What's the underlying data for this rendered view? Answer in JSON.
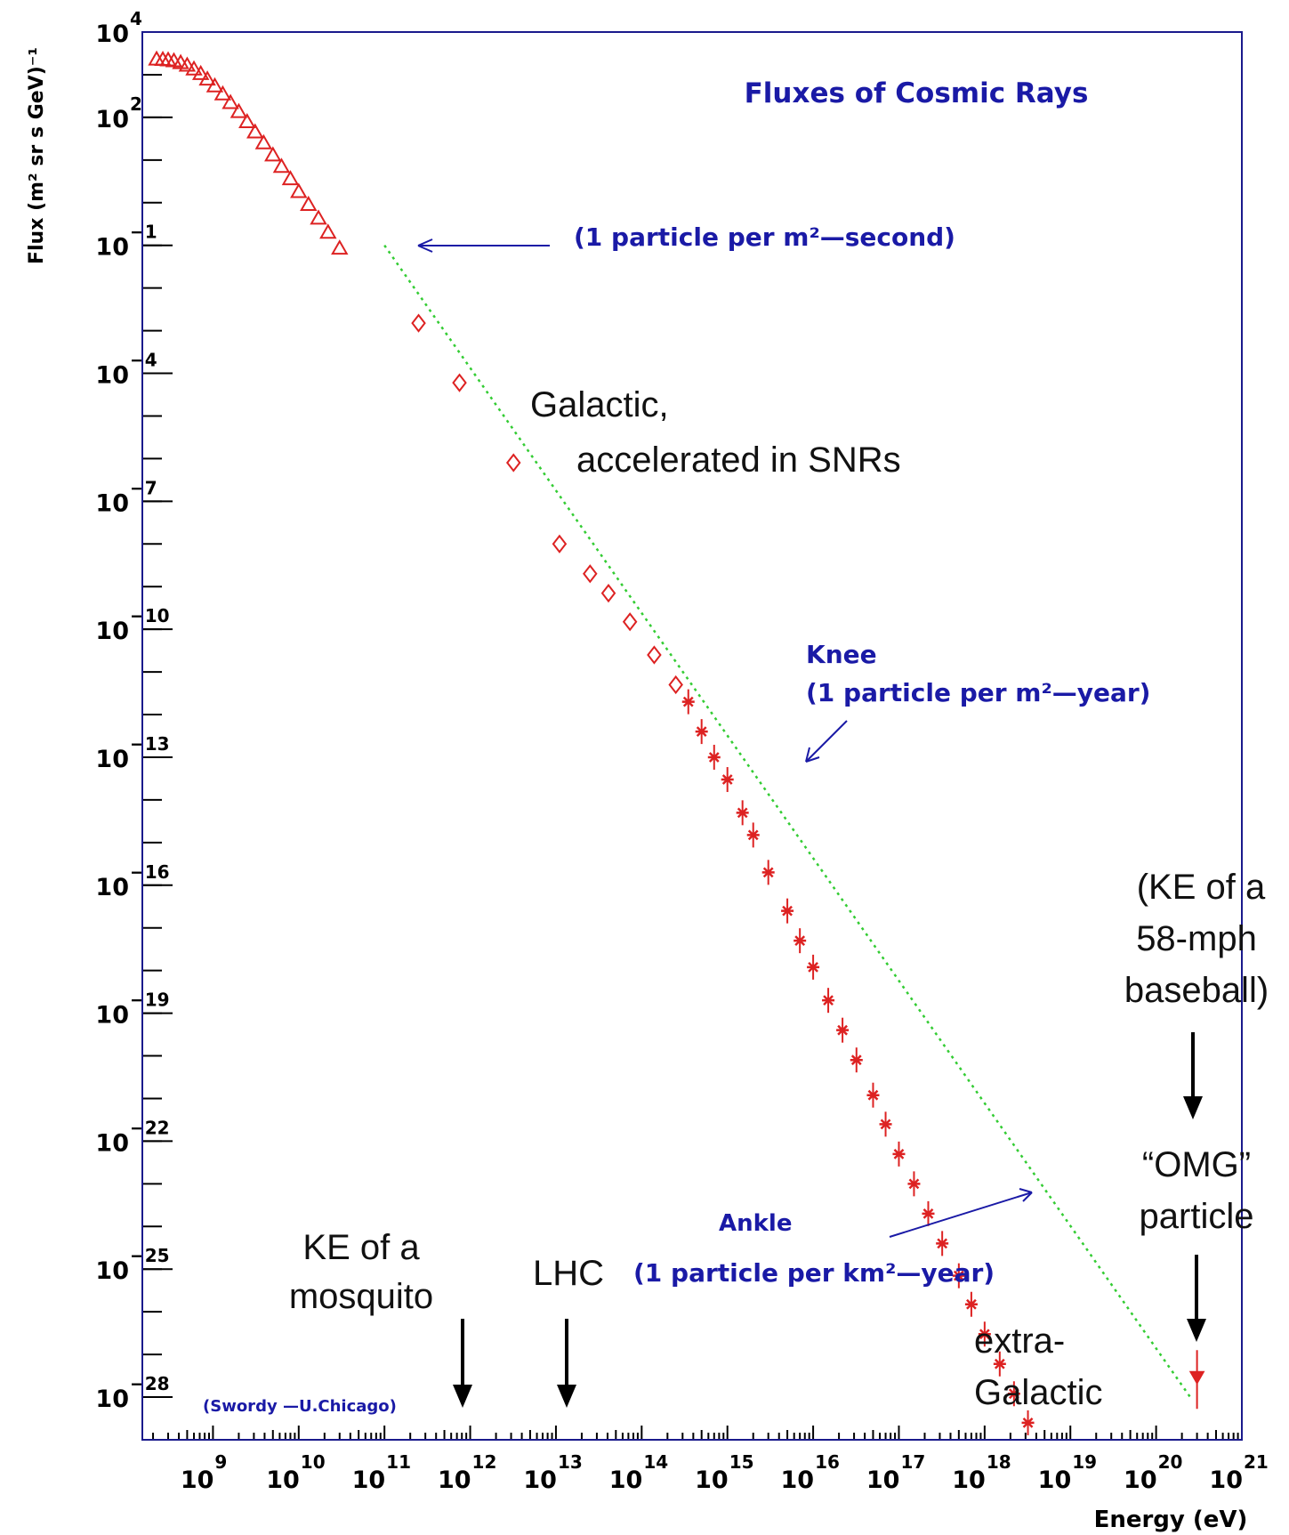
{
  "chart_data": {
    "type": "scatter",
    "title": "Fluxes of Cosmic Rays",
    "xlabel": "Energy (eV)",
    "ylabel": "Flux (m² sr s GeV)⁻¹",
    "xscale": "log",
    "yscale": "log",
    "xlim": [
      150000000.0,
      1e+21
    ],
    "ylim": [
      1e-29,
      10000.0
    ],
    "x_ticks": [
      {
        "exp": "9"
      },
      {
        "exp": "10"
      },
      {
        "exp": "11"
      },
      {
        "exp": "12"
      },
      {
        "exp": "13"
      },
      {
        "exp": "14"
      },
      {
        "exp": "15"
      },
      {
        "exp": "16"
      },
      {
        "exp": "17"
      },
      {
        "exp": "18"
      },
      {
        "exp": "19"
      },
      {
        "exp": "20"
      },
      {
        "exp": "21"
      }
    ],
    "y_ticks": [
      {
        "exp": "4"
      },
      {
        "exp": "2"
      },
      {
        "exp": "−1"
      },
      {
        "exp": "−4"
      },
      {
        "exp": "−7"
      },
      {
        "exp": "−10"
      },
      {
        "exp": "−13"
      },
      {
        "exp": "−16"
      },
      {
        "exp": "−19"
      },
      {
        "exp": "−22"
      },
      {
        "exp": "−25"
      },
      {
        "exp": "−28"
      }
    ],
    "tick_base": "10",
    "reference_line": {
      "style": "dotted",
      "color": "#33cc33",
      "x": [
        100000000000.0,
        2.5e+20
      ],
      "y": [
        0.1,
        1e-28
      ]
    },
    "series": [
      {
        "marker": "triangle",
        "color": "#dd2222",
        "points": [
          [
            220000000.0,
            2300
          ],
          [
            260000000.0,
            2250
          ],
          [
            300000000.0,
            2200
          ],
          [
            350000000.0,
            2100
          ],
          [
            420000000.0,
            1900
          ],
          [
            500000000.0,
            1650
          ],
          [
            600000000.0,
            1350
          ],
          [
            720000000.0,
            1050
          ],
          [
            860000000.0,
            780
          ],
          [
            1050000000.0,
            540
          ],
          [
            1300000000.0,
            350
          ],
          [
            1600000000.0,
            220
          ],
          [
            2000000000.0,
            135
          ],
          [
            2500000000.0,
            78
          ],
          [
            3100000000.0,
            45
          ],
          [
            3900000000.0,
            25
          ],
          [
            5000000000.0,
            13
          ],
          [
            6300000000.0,
            7
          ],
          [
            8000000000.0,
            3.6
          ],
          [
            10000000000.0,
            1.8
          ],
          [
            13000000000.0,
            0.9
          ],
          [
            17000000000.0,
            0.43
          ],
          [
            22000000000.0,
            0.2
          ],
          [
            30000000000.0,
            0.085
          ]
        ]
      },
      {
        "marker": "diamond",
        "color": "#dd2222",
        "points": [
          [
            250000000000.0,
            0.0015
          ],
          [
            750000000000.0,
            6e-05
          ],
          [
            3200000000000.0,
            8e-07
          ],
          [
            11000000000000.0,
            1e-08
          ],
          [
            25000000000000.0,
            2e-09
          ],
          [
            41000000000000.0,
            7e-10
          ],
          [
            73000000000000.0,
            1.5e-10
          ],
          [
            140000000000000.0,
            2.5e-11
          ],
          [
            250000000000000.0,
            5e-12
          ]
        ]
      },
      {
        "marker": "star",
        "color": "#dd2222",
        "points": [
          [
            350000000000000.0,
            2e-12
          ],
          [
            500000000000000.0,
            4e-13
          ],
          [
            700000000000000.0,
            1e-13
          ],
          [
            1000000000000000.0,
            3e-14
          ],
          [
            1500000000000000.0,
            5e-15
          ],
          [
            2000000000000000.0,
            1.5e-15
          ],
          [
            3000000000000000.0,
            2e-16
          ],
          [
            5000000000000000.0,
            2.5e-17
          ],
          [
            7000000000000000.0,
            5e-18
          ],
          [
            1e+16,
            1.2e-18
          ],
          [
            1.5e+16,
            2e-19
          ],
          [
            2.2e+16,
            4e-20
          ],
          [
            3.2e+16,
            8e-21
          ],
          [
            5e+16,
            1.2e-21
          ],
          [
            7e+16,
            2.5e-22
          ],
          [
            1e+17,
            5e-23
          ],
          [
            1.5e+17,
            1e-23
          ],
          [
            2.2e+17,
            2e-24
          ],
          [
            3.2e+17,
            4e-25
          ],
          [
            5e+17,
            7e-26
          ],
          [
            7e+17,
            1.5e-26
          ],
          [
            1e+18,
            3e-27
          ],
          [
            1.5e+18,
            6e-28
          ],
          [
            2.2e+18,
            1.2e-28
          ],
          [
            3.2e+18,
            2.5e-29
          ]
        ]
      },
      {
        "marker": "triangle-filled",
        "color": "#dd2222",
        "points": [
          [
            3e+20,
            3e-28
          ]
        ]
      }
    ],
    "annotations": [
      {
        "text": "(1 particle per m²—second)",
        "color": "#1a1aa6"
      },
      {
        "text": "Knee",
        "color": "#1a1aa6"
      },
      {
        "text": "(1 particle per m²—year)",
        "color": "#1a1aa6"
      },
      {
        "text": "Ankle",
        "color": "#1a1aa6"
      },
      {
        "text": "(1 particle per km²—year)",
        "color": "#1a1aa6"
      },
      {
        "text": "(Swordy —U.Chicago)",
        "color": "#1a1aa6"
      },
      {
        "text": "Galactic,",
        "color": "#111111"
      },
      {
        "text": "accelerated in SNRs",
        "color": "#111111"
      },
      {
        "text": "KE of a",
        "color": "#111111"
      },
      {
        "text": "mosquito",
        "color": "#111111"
      },
      {
        "text": "LHC",
        "color": "#111111"
      },
      {
        "text": "(KE of a",
        "color": "#111111"
      },
      {
        "text": "58-mph",
        "color": "#111111"
      },
      {
        "text": "baseball)",
        "color": "#111111"
      },
      {
        "text": "“OMG”",
        "color": "#111111"
      },
      {
        "text": "particle",
        "color": "#111111"
      },
      {
        "text": "extra-",
        "color": "#111111"
      },
      {
        "text": "Galactic",
        "color": "#111111"
      }
    ]
  }
}
